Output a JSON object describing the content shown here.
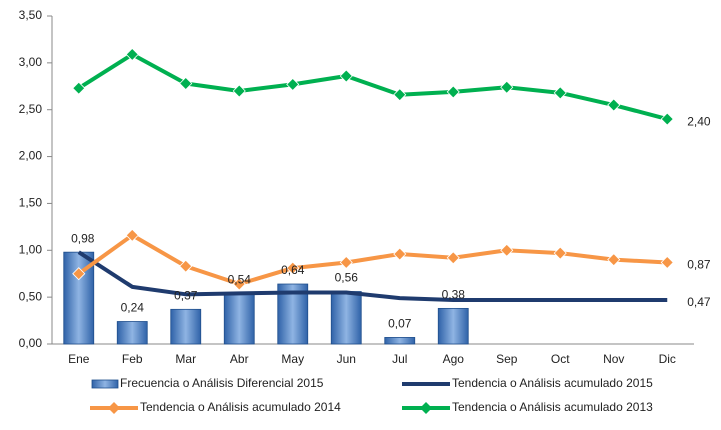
{
  "chart_data": {
    "type": "bar-line",
    "categories": [
      "Ene",
      "Feb",
      "Mar",
      "Abr",
      "May",
      "Jun",
      "Jul",
      "Ago",
      "Sep",
      "Oct",
      "Nov",
      "Dic"
    ],
    "ylim": [
      0,
      3.5
    ],
    "yticks": [
      {
        "value": 0,
        "label": "0,00"
      },
      {
        "value": 0.5,
        "label": "0,50"
      },
      {
        "value": 1,
        "label": "1,00"
      },
      {
        "value": 1.5,
        "label": "1,50"
      },
      {
        "value": 2,
        "label": "2,00"
      },
      {
        "value": 2.5,
        "label": "2,50"
      },
      {
        "value": 3,
        "label": "3,00"
      },
      {
        "value": 3.5,
        "label": "3,50"
      }
    ],
    "grid": false,
    "legend": "bottom",
    "series": [
      {
        "name": "Frecuencia o Análisis Diferencial 2015",
        "kind": "bar",
        "color": "#4f81bd",
        "values": [
          0.98,
          0.24,
          0.37,
          0.54,
          0.64,
          0.56,
          0.07,
          0.38,
          null,
          null,
          null,
          null
        ],
        "value_labels": [
          "0,98",
          "0,24",
          "0,37",
          "0,54",
          "0,64",
          "0,56",
          "0,07",
          "0,38",
          null,
          null,
          null,
          null
        ]
      },
      {
        "name": "Tendencia o Análisis acumulado 2015",
        "kind": "line",
        "color": "#1f3b6e",
        "values": [
          0.98,
          0.61,
          0.53,
          0.54,
          0.55,
          0.55,
          0.49,
          0.47,
          0.47,
          0.47,
          0.47,
          0.47
        ],
        "value_labels": [
          null,
          null,
          null,
          null,
          null,
          null,
          null,
          null,
          null,
          null,
          null,
          "0,47"
        ]
      },
      {
        "name": "Tendencia o Análisis acumulado 2014",
        "kind": "line",
        "marker": "diamond",
        "color": "#f79646",
        "values": [
          0.75,
          1.16,
          0.83,
          0.64,
          0.81,
          0.87,
          0.96,
          0.92,
          1.0,
          0.97,
          0.9,
          0.87
        ],
        "value_labels": [
          null,
          null,
          null,
          null,
          null,
          null,
          null,
          null,
          null,
          null,
          null,
          "0,87"
        ]
      },
      {
        "name": "Tendencia o Análisis acumulado 2013",
        "kind": "line",
        "marker": "diamond",
        "color": "#00b050",
        "values": [
          2.73,
          3.09,
          2.78,
          2.7,
          2.77,
          2.86,
          2.66,
          2.69,
          2.74,
          2.68,
          2.55,
          2.4
        ],
        "value_labels": [
          null,
          null,
          null,
          null,
          null,
          null,
          null,
          null,
          null,
          null,
          null,
          "2,40"
        ]
      }
    ]
  }
}
